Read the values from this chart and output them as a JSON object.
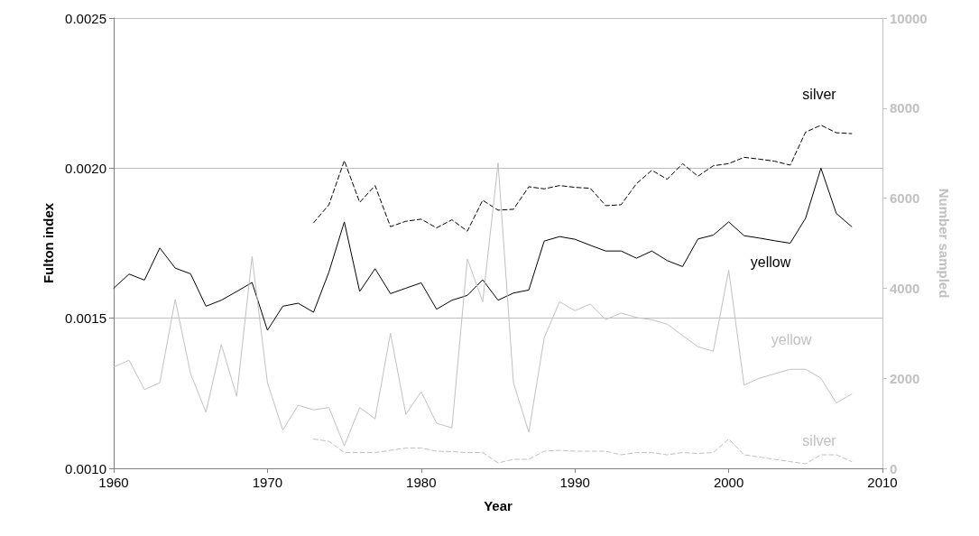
{
  "chart_data": {
    "type": "line",
    "xlabel": "Year",
    "ylabel": "Fulton index",
    "y2label": "Number sampled",
    "x": [
      1960,
      1961,
      1962,
      1963,
      1964,
      1965,
      1966,
      1967,
      1968,
      1969,
      1970,
      1971,
      1972,
      1973,
      1974,
      1975,
      1976,
      1977,
      1978,
      1979,
      1980,
      1981,
      1982,
      1983,
      1984,
      1985,
      1986,
      1987,
      1988,
      1989,
      1990,
      1991,
      1992,
      1993,
      1994,
      1995,
      1996,
      1997,
      1998,
      1999,
      2000,
      2001,
      2002,
      2003,
      2004,
      2005,
      2006,
      2007,
      2008
    ],
    "series": [
      {
        "name": "yellow",
        "color": "#000000",
        "line_style": "solid",
        "values": [
          0.0016,
          0.001647,
          0.001627,
          0.001734,
          0.001667,
          0.001648,
          0.00154,
          0.00156,
          0.001589,
          0.001619,
          0.00146,
          0.00154,
          0.00155,
          0.00152,
          0.001654,
          0.001821,
          0.001589,
          0.001665,
          0.001582,
          0.0016,
          0.001618,
          0.00153,
          0.00156,
          0.001576,
          0.001628,
          0.00156,
          0.001584,
          0.001594,
          0.001757,
          0.001772,
          0.001763,
          0.001743,
          0.001724,
          0.001724,
          0.0017,
          0.001724,
          0.001692,
          0.001672,
          0.001764,
          0.001777,
          0.001821,
          0.001775,
          0.001767,
          0.001758,
          0.00175,
          0.001833,
          0.002,
          0.001849,
          0.001805
        ]
      },
      {
        "name": "silver",
        "color": "#000000",
        "line_style": "dashed",
        "values": [
          null,
          null,
          null,
          null,
          null,
          null,
          null,
          null,
          null,
          null,
          null,
          null,
          null,
          0.001818,
          0.001878,
          0.002025,
          0.001886,
          0.001942,
          0.001805,
          0.001823,
          0.00183,
          0.001801,
          0.001828,
          0.00179,
          0.001893,
          0.00186,
          0.001863,
          0.001938,
          0.001931,
          0.001942,
          0.001936,
          0.001933,
          0.001875,
          0.001878,
          0.001948,
          0.001993,
          0.001963,
          0.002015,
          0.001973,
          0.002008,
          0.002015,
          0.002036,
          0.00203,
          0.002023,
          0.00201,
          0.00212,
          0.002143,
          0.002118,
          0.002115
        ]
      },
      {
        "name": "yellow",
        "color": "#c0c0c0",
        "line_style": "solid",
        "axis": "y2",
        "values": [
          2250,
          2400,
          1750,
          1900,
          3750,
          2100,
          1250,
          2750,
          1600,
          4700,
          1900,
          850,
          1400,
          1300,
          1350,
          500,
          1350,
          1100,
          3000,
          1200,
          1700,
          1000,
          900,
          4650,
          3700,
          6780,
          1900,
          800,
          2900,
          3700,
          3500,
          3650,
          3300,
          3450,
          3350,
          3300,
          3200,
          2950,
          2700,
          2600,
          4400,
          1850,
          2000,
          2100,
          2200,
          2200,
          2000,
          1450,
          1650
        ]
      },
      {
        "name": "silver",
        "color": "#c0c0c0",
        "line_style": "dashed",
        "axis": "y2",
        "values": [
          null,
          null,
          null,
          null,
          null,
          null,
          null,
          null,
          null,
          null,
          null,
          null,
          null,
          650,
          600,
          350,
          350,
          350,
          400,
          450,
          450,
          380,
          370,
          350,
          350,
          120,
          200,
          200,
          380,
          400,
          380,
          380,
          380,
          300,
          350,
          350,
          300,
          350,
          330,
          350,
          650,
          300,
          250,
          200,
          150,
          100,
          300,
          300,
          150
        ]
      }
    ],
    "xlim": [
      1960,
      2010
    ],
    "xticks": [
      1960,
      1970,
      1980,
      1990,
      2000,
      2010
    ],
    "ylim": [
      0.001,
      0.0025
    ],
    "yticks": [
      {
        "value": 0.001,
        "label": "0.0010"
      },
      {
        "value": 0.0015,
        "label": "0.0015"
      },
      {
        "value": 0.002,
        "label": "0.0020"
      },
      {
        "value": 0.0025,
        "label": "0.0025"
      }
    ],
    "y2lim": [
      0,
      10000
    ],
    "y2ticks": [
      0,
      2000,
      4000,
      6000,
      8000,
      10000
    ],
    "grid": "y",
    "legend": false,
    "marker": "none"
  }
}
